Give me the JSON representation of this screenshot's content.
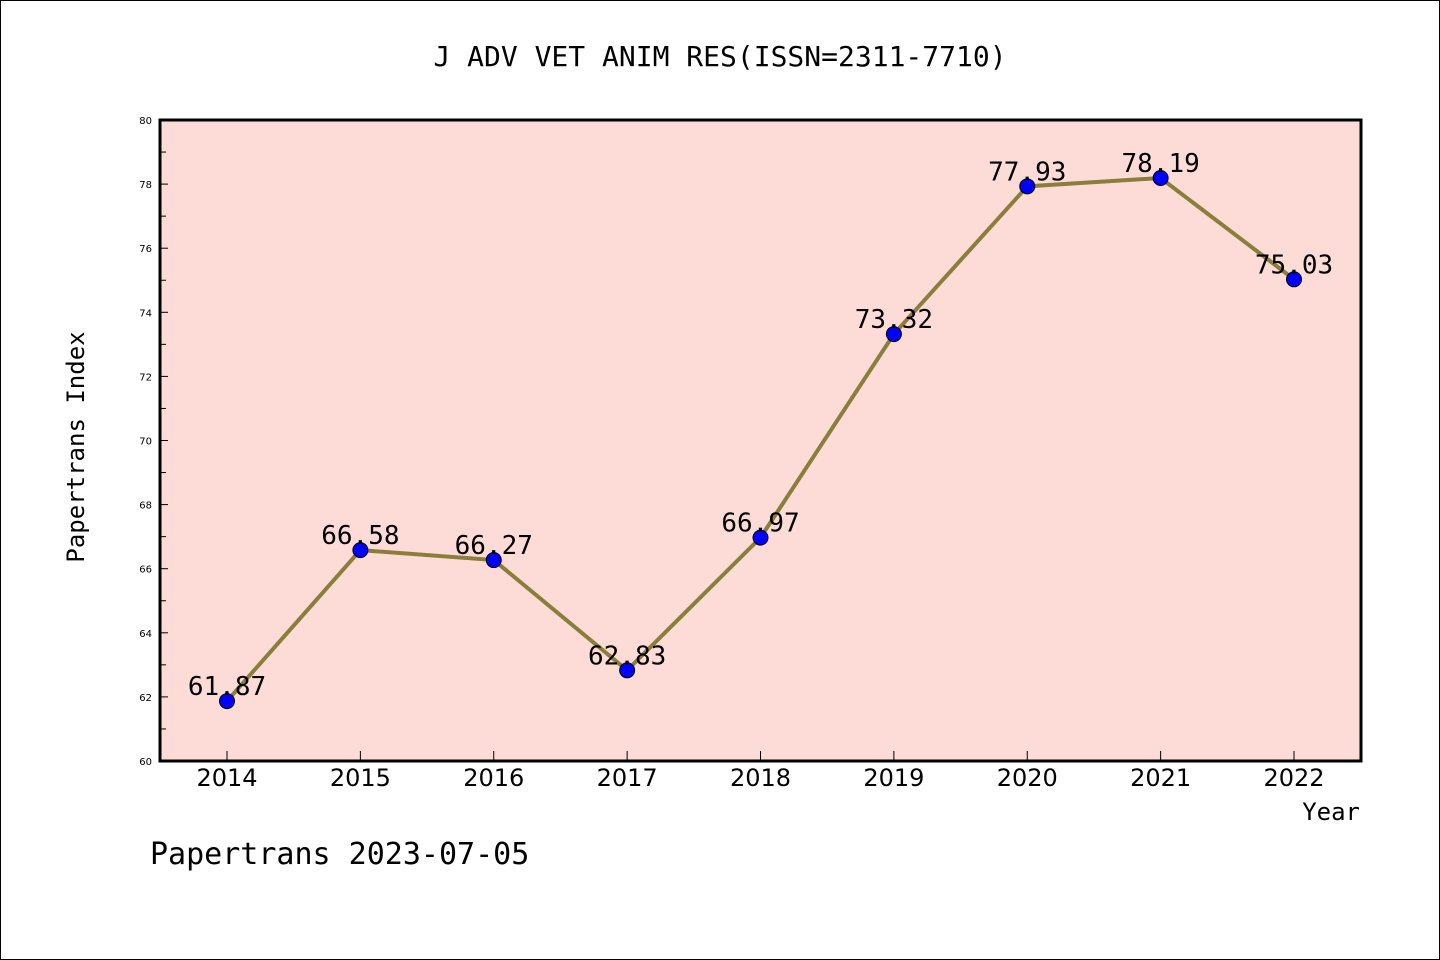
{
  "chart_data": {
    "type": "line",
    "title": "J ADV VET ANIM RES(ISSN=2311-7710)",
    "xlabel": "Year",
    "ylabel": "Papertrans Index",
    "categories": [
      "2014",
      "2015",
      "2016",
      "2017",
      "2018",
      "2019",
      "2020",
      "2021",
      "2022"
    ],
    "values": [
      61.87,
      66.58,
      66.27,
      62.83,
      66.97,
      73.32,
      77.93,
      78.19,
      75.03
    ],
    "data_labels": [
      "61.87",
      "66.58",
      "66.27",
      "62.83",
      "66.97",
      "73.32",
      "77.93",
      "78.19",
      "75.03"
    ],
    "ylim": [
      60,
      80
    ],
    "yticks": [
      "60",
      "62",
      "64",
      "66",
      "68",
      "70",
      "72",
      "74",
      "76",
      "78",
      "80"
    ],
    "grid": false,
    "line_color": "#8b7d3a",
    "marker_color": "#0000ff",
    "plot_background": "#fddcd8"
  },
  "footer": "Papertrans 2023-07-05"
}
